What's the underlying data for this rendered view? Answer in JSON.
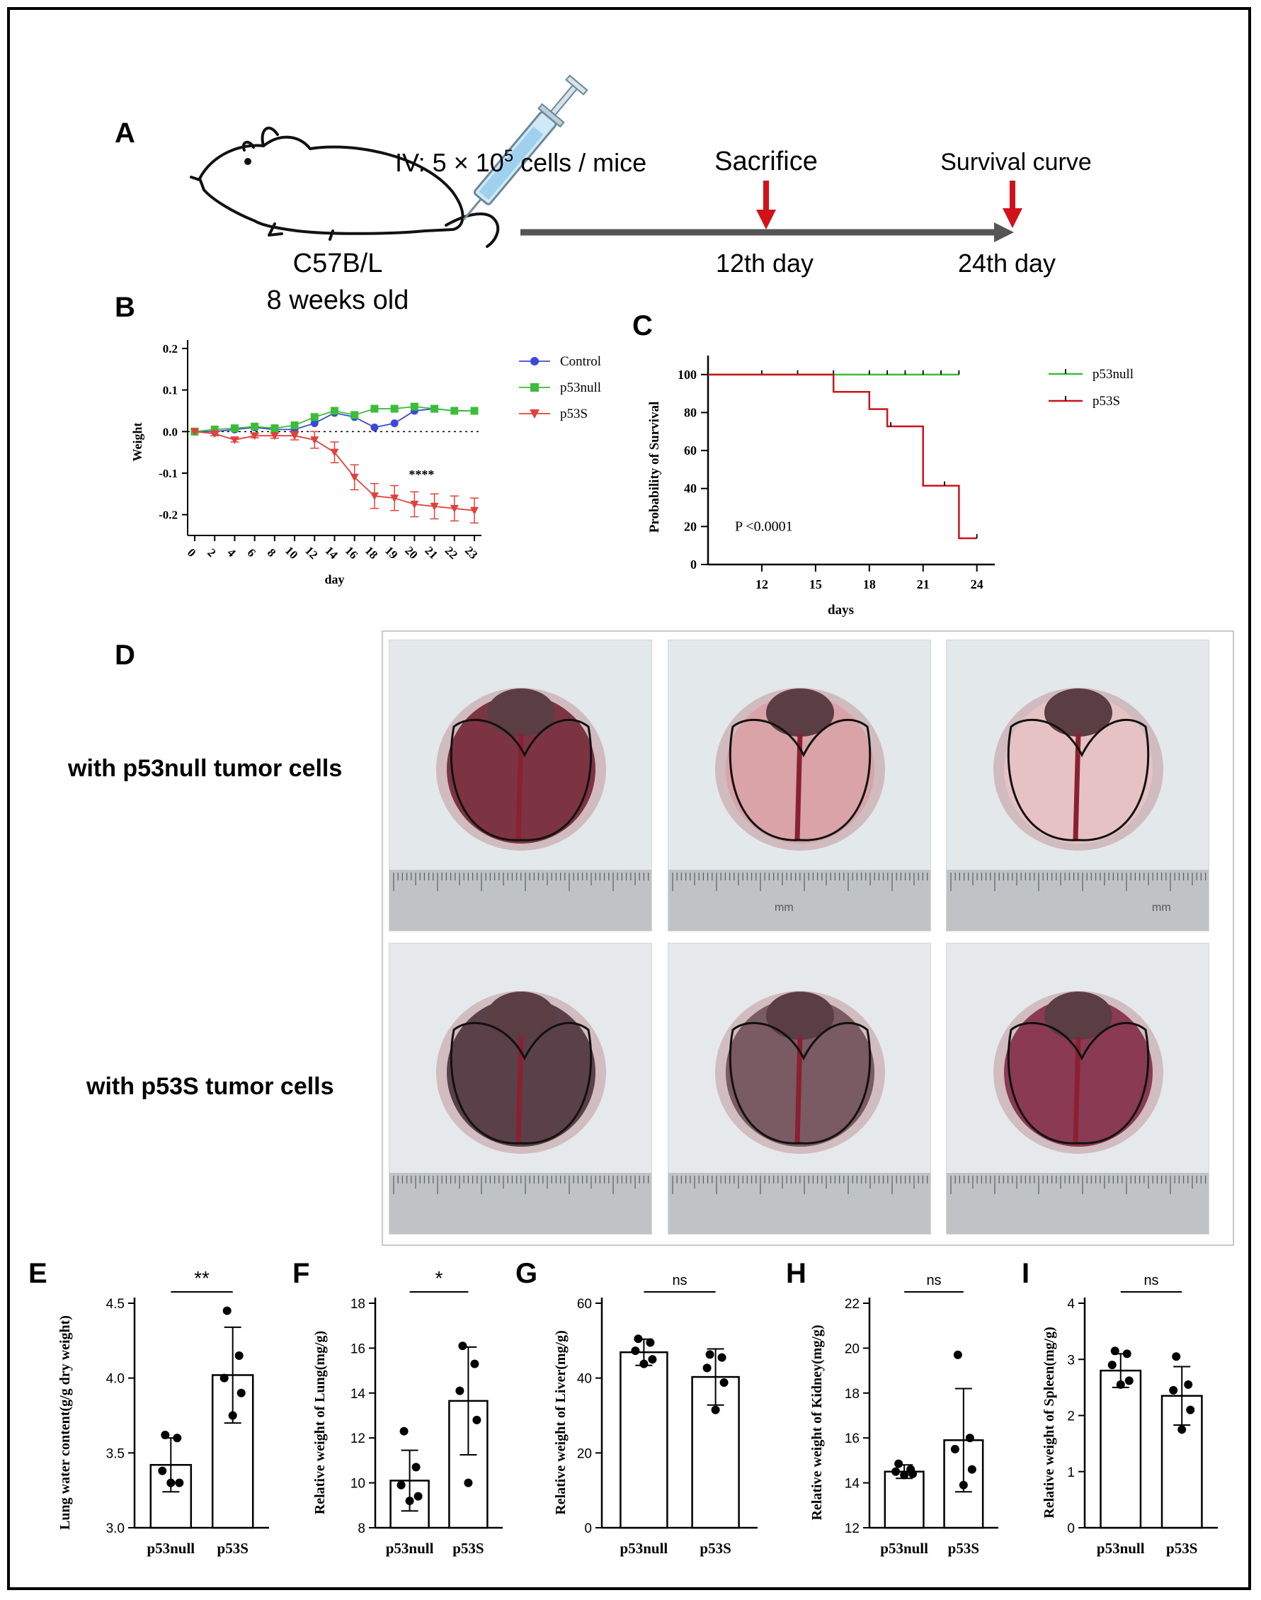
{
  "panels": {
    "A": "A",
    "B": "B",
    "C": "C",
    "D": "D",
    "E": "E",
    "F": "F",
    "G": "G",
    "H": "H",
    "I": "I"
  },
  "timeline": {
    "injection_prefix": "IV: 5 × 10",
    "injection_exponent": "5",
    "injection_suffix": " cells / mice",
    "strain": "C57B/L",
    "age": "8 weeks old",
    "event1": "Sacrifice",
    "event1_day": "12th day",
    "event2": "Survival curve",
    "event2_day": "24th day",
    "arrow_color": "#d0121b",
    "axis_color": "#555555"
  },
  "photos": {
    "row1_label": "with p53null tumor cells",
    "row2_label": "with p53S tumor cells",
    "ruler_unit": "mm"
  },
  "chart_data": [
    {
      "id": "B",
      "type": "line",
      "xlabel": "day",
      "ylabel": "Weight",
      "categories": [
        "0",
        "2",
        "4",
        "6",
        "8",
        "10",
        "12",
        "14",
        "16",
        "18",
        "19",
        "20",
        "21",
        "22",
        "23"
      ],
      "ylim": [
        -0.25,
        0.2
      ],
      "yticks": [
        "0.2",
        "0.1",
        "0.0",
        "-0.1",
        "-0.2"
      ],
      "annotation": "****",
      "series": [
        {
          "name": "Control",
          "color": "#3b49d6",
          "marker": "circle",
          "values": [
            0.0,
            0.0,
            0.005,
            0.01,
            0.005,
            0.005,
            0.02,
            0.045,
            0.035,
            0.01,
            0.02,
            0.05,
            0.055,
            0.05,
            0.05
          ],
          "err": []
        },
        {
          "name": "p53null",
          "color": "#3cbd3a",
          "marker": "square",
          "values": [
            0.0,
            0.005,
            0.008,
            0.012,
            0.008,
            0.015,
            0.035,
            0.05,
            0.04,
            0.055,
            0.055,
            0.06,
            0.055,
            0.05,
            0.05
          ],
          "err": []
        },
        {
          "name": "p53S",
          "color": "#e0413c",
          "marker": "triangle",
          "values": [
            0.0,
            -0.005,
            -0.02,
            -0.01,
            -0.01,
            -0.01,
            -0.02,
            -0.05,
            -0.11,
            -0.155,
            -0.16,
            -0.175,
            -0.18,
            -0.185,
            -0.19
          ],
          "err": [
            0,
            0.005,
            0.005,
            0.005,
            0.006,
            0.01,
            0.02,
            0.025,
            0.03,
            0.03,
            0.03,
            0.03,
            0.03,
            0.03,
            0.03
          ]
        }
      ]
    },
    {
      "id": "C",
      "type": "line",
      "xlabel": "days",
      "ylabel": "Probability of Survival",
      "xlim": [
        9,
        25
      ],
      "xticks": [
        12,
        15,
        18,
        21,
        24
      ],
      "ylim": [
        0,
        110
      ],
      "yticks": [
        0,
        20,
        40,
        60,
        80,
        100
      ],
      "annotation": "P <0.0001",
      "series": [
        {
          "name": "p53null",
          "color": "#3cbd3a",
          "steps": [
            [
              9,
              100
            ],
            [
              23,
              100
            ]
          ],
          "censor": [
            12,
            14,
            16,
            18,
            19,
            20,
            21,
            22,
            23
          ]
        },
        {
          "name": "p53S",
          "color": "#c8161d",
          "steps": [
            [
              9,
              100
            ],
            [
              16,
              100
            ],
            [
              16,
              90.9
            ],
            [
              18,
              90.9
            ],
            [
              18,
              81.8
            ],
            [
              19,
              81.8
            ],
            [
              19,
              72.7
            ],
            [
              21,
              72.7
            ],
            [
              21,
              41.5
            ],
            [
              23,
              41.5
            ],
            [
              23,
              13.8
            ],
            [
              24,
              13.8
            ]
          ],
          "censor": [
            19.2,
            22.2,
            24
          ]
        }
      ]
    },
    {
      "id": "E",
      "type": "bar",
      "ylabel": "Lung water content(g/g dry weight)",
      "categories": [
        "p53null",
        "p53S"
      ],
      "values": [
        3.42,
        4.02
      ],
      "err": [
        0.18,
        0.32
      ],
      "points": [
        [
          3.62,
          3.6,
          3.38,
          3.3,
          3.3
        ],
        [
          4.45,
          4.15,
          4.0,
          3.9,
          3.75
        ]
      ],
      "ylim": [
        3.0,
        4.5
      ],
      "yticks": [
        "3.0",
        "3.5",
        "4.0",
        "4.5"
      ],
      "sig": "**"
    },
    {
      "id": "F",
      "type": "bar",
      "ylabel": "Relative weight of Lung(mg/g)",
      "categories": [
        "p53null",
        "p53S"
      ],
      "values": [
        10.1,
        13.65
      ],
      "err": [
        1.35,
        2.4
      ],
      "points": [
        [
          12.3,
          10.7,
          9.9,
          9.4,
          9.2
        ],
        [
          16.1,
          15.3,
          14.1,
          12.8,
          10.0
        ]
      ],
      "ylim": [
        8,
        18
      ],
      "yticks": [
        "8",
        "10",
        "12",
        "14",
        "16",
        "18"
      ],
      "sig": "*"
    },
    {
      "id": "G",
      "type": "bar",
      "ylabel": "Relative weight of Liver(mg/g)",
      "categories": [
        "p53null",
        "p53S"
      ],
      "values": [
        46.9,
        40.3
      ],
      "err": [
        3.5,
        7.5
      ],
      "points": [
        [
          50.5,
          49.5,
          47.3,
          45.0,
          43.8
        ],
        [
          46.3,
          45.5,
          42.7,
          38.8,
          31.5
        ]
      ],
      "ylim": [
        0,
        60
      ],
      "yticks": [
        "0",
        "20",
        "40",
        "60"
      ],
      "sig": "ns"
    },
    {
      "id": "H",
      "type": "bar",
      "ylabel": "Relative weight of Kidney(mg/g)",
      "categories": [
        "p53null",
        "p53S"
      ],
      "values": [
        14.5,
        15.9
      ],
      "err": [
        0.3,
        2.3
      ],
      "points": [
        [
          14.85,
          14.6,
          14.5,
          14.4,
          14.35
        ],
        [
          19.7,
          16.0,
          15.5,
          14.6,
          13.9
        ]
      ],
      "ylim": [
        12,
        22
      ],
      "yticks": [
        "12",
        "14",
        "16",
        "18",
        "20",
        "22"
      ],
      "sig": "ns"
    },
    {
      "id": "I",
      "type": "bar",
      "ylabel": "Relative weight of Spleen(mg/g)",
      "categories": [
        "p53null",
        "p53S"
      ],
      "values": [
        2.8,
        2.35
      ],
      "err": [
        0.3,
        0.52
      ],
      "points": [
        [
          3.15,
          3.1,
          2.9,
          2.62,
          2.55
        ],
        [
          3.05,
          2.55,
          2.45,
          2.1,
          1.75
        ]
      ],
      "ylim": [
        0,
        4
      ],
      "yticks": [
        "0",
        "1",
        "2",
        "3",
        "4"
      ],
      "sig": "ns"
    }
  ]
}
